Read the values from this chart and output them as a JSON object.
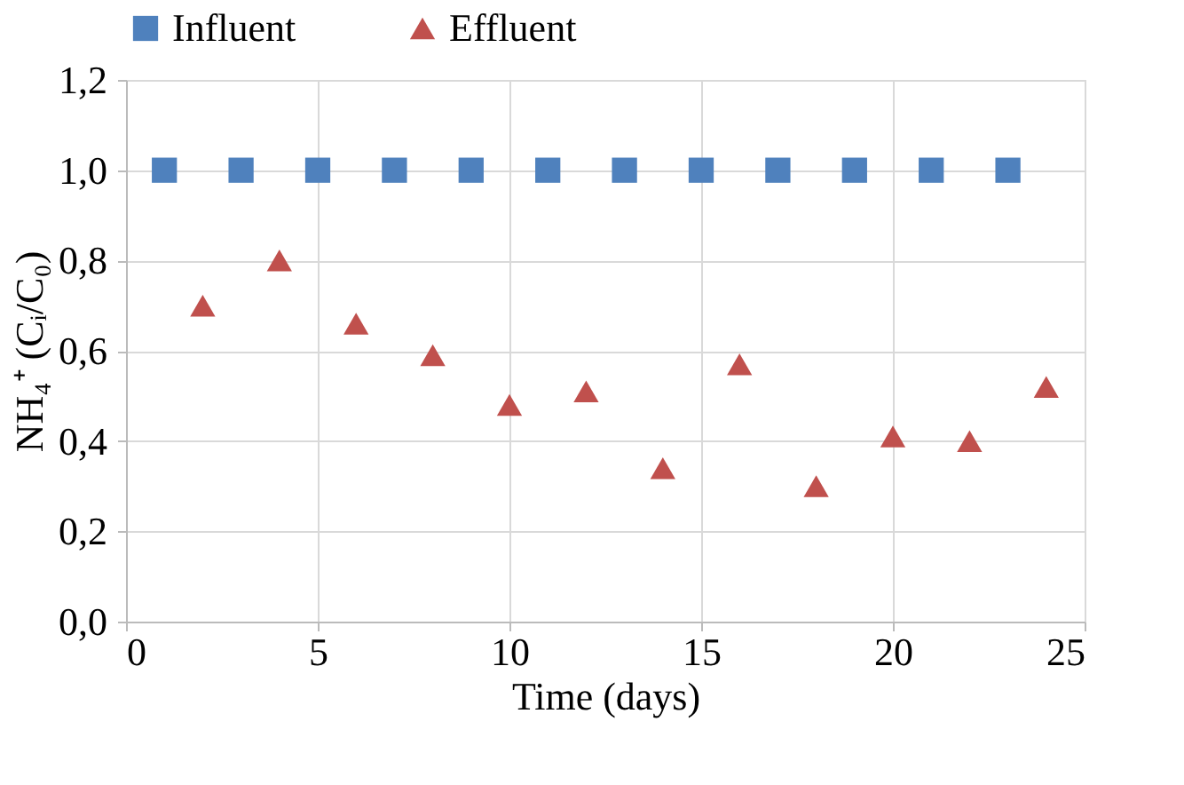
{
  "chart_data": {
    "type": "scatter",
    "xlabel": "Time (days)",
    "ylabel": "NH₄⁺ (Cᵢ/C₀)",
    "xlim": [
      0,
      25
    ],
    "xticks": [
      0,
      5,
      10,
      15,
      20,
      25
    ],
    "ylim": [
      0,
      1.2
    ],
    "yticks": [
      {
        "value": 0,
        "label": "0,0"
      },
      {
        "value": 0.2,
        "label": "0,2"
      },
      {
        "value": 0.4,
        "label": "0,4"
      },
      {
        "value": 0.6,
        "label": "0,6"
      },
      {
        "value": 0.8,
        "label": "0,8"
      },
      {
        "value": 1.0,
        "label": "1,0"
      },
      {
        "value": 1.2,
        "label": "1,2"
      }
    ],
    "grid": true,
    "legend": "top",
    "series": [
      {
        "name": "Influent",
        "color": "#4f81bd",
        "marker": "square",
        "x": [
          1,
          3,
          5,
          7,
          9,
          11,
          13,
          15,
          17,
          19,
          21,
          23
        ],
        "values": [
          1,
          1,
          1,
          1,
          1,
          1,
          1,
          1,
          1,
          1,
          1,
          1
        ]
      },
      {
        "name": "Effluent",
        "color": "#c0504d",
        "marker": "triangle",
        "x": [
          2,
          4,
          6,
          8,
          10,
          12,
          14,
          16,
          18,
          20,
          22,
          24
        ],
        "values": [
          0.7,
          0.8,
          0.66,
          0.59,
          0.48,
          0.51,
          0.34,
          0.57,
          0.3,
          0.41,
          0.4,
          0.52
        ]
      }
    ]
  }
}
